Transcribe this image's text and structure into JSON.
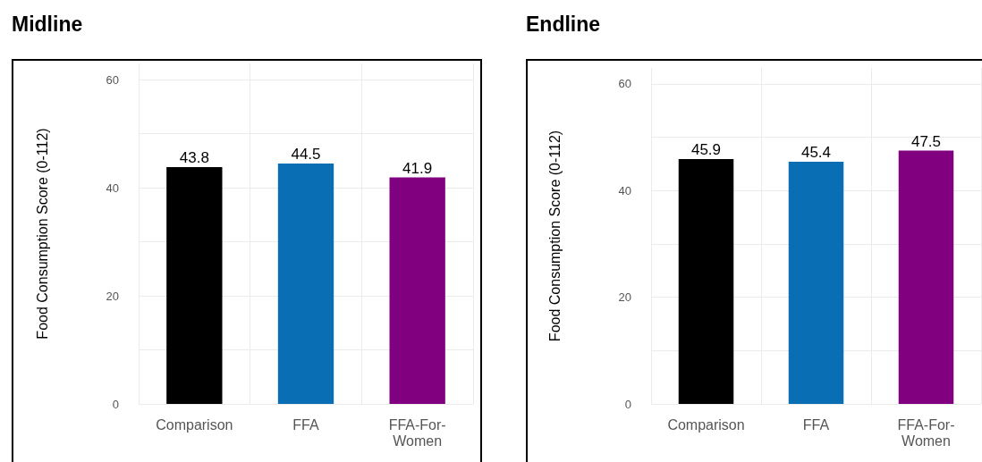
{
  "chart_data": [
    {
      "type": "bar",
      "title": "Midline",
      "ylabel": "Food Consumption Score (0-112)",
      "categories": [
        "Comparison",
        "FFA",
        "FFA-For-Women"
      ],
      "values": [
        43.8,
        44.5,
        41.9
      ],
      "colors": [
        "#000000",
        "#0a6eb4",
        "#800080"
      ],
      "ylim": [
        0,
        63
      ],
      "yticks": [
        0,
        {
          "value": 10,
          "label": null
        },
        20,
        {
          "value": 30,
          "label": null
        },
        40,
        {
          "value": 50,
          "label": null
        },
        60
      ],
      "grid": true,
      "data_labels": true
    },
    {
      "type": "bar",
      "title": "Endline",
      "ylabel": "Food Consumption Score (0-112)",
      "categories": [
        "Comparison",
        "FFA",
        "FFA-For-Women"
      ],
      "values": [
        45.9,
        45.4,
        47.5
      ],
      "colors": [
        "#000000",
        "#0a6eb4",
        "#800080"
      ],
      "ylim": [
        0,
        63
      ],
      "yticks": [
        0,
        {
          "value": 10,
          "label": null
        },
        20,
        {
          "value": 30,
          "label": null
        },
        40,
        {
          "value": 50,
          "label": null
        },
        60
      ],
      "grid": true,
      "data_labels": true
    }
  ]
}
